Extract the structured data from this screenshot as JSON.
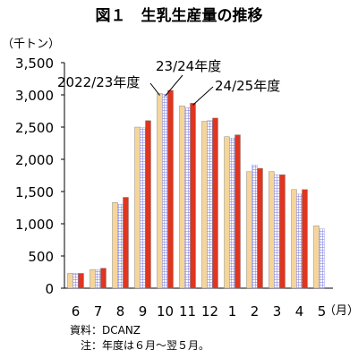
{
  "chart_data": {
    "type": "bar",
    "title": "図１　生乳生産量の推移",
    "unit_label": "（千トン）",
    "x_unit_label": "（月）",
    "categories": [
      "6",
      "7",
      "8",
      "9",
      "10",
      "11",
      "12",
      "1",
      "2",
      "3",
      "4",
      "5"
    ],
    "ylim": [
      0,
      3500
    ],
    "y_ticks": [
      "0",
      "500",
      "1,000",
      "1,500",
      "2,000",
      "2,500",
      "3,000",
      "3,500"
    ],
    "grid": false,
    "series": [
      {
        "name": "2022/23年度",
        "color": "#f5d59a",
        "pattern": "solid",
        "values": [
          230,
          290,
          1330,
          2500,
          3020,
          2830,
          2590,
          2350,
          1810,
          1810,
          1530,
          970
        ]
      },
      {
        "name": "23/24年度",
        "color": "#8c8ce6",
        "pattern": "grid",
        "values": [
          230,
          290,
          1300,
          2490,
          3010,
          2800,
          2600,
          2330,
          1910,
          1760,
          1460,
          920
        ]
      },
      {
        "name": "24/25年度",
        "color": "#e0351e",
        "pattern": "solid",
        "values": [
          230,
          310,
          1410,
          2600,
          3070,
          2870,
          2640,
          2380,
          1860,
          1760,
          1530,
          null
        ]
      }
    ]
  },
  "notes": {
    "source": "資料：DCANZ",
    "note": "　注：年度は６月～翌５月。"
  }
}
